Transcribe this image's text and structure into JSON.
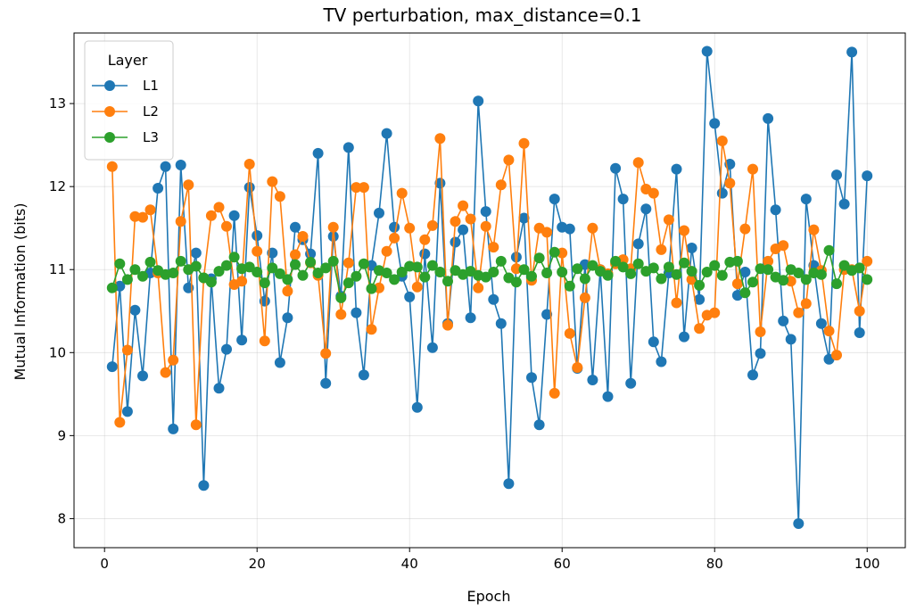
{
  "chart_data": {
    "type": "line",
    "title": "TV perturbation, max_distance=0.1",
    "xlabel": "Epoch",
    "ylabel": "Mutual Information (bits)",
    "xlim": [
      -4,
      105
    ],
    "ylim": [
      7.65,
      13.85
    ],
    "xticks": [
      0,
      20,
      40,
      60,
      80,
      100
    ],
    "yticks": [
      8,
      9,
      10,
      11,
      12,
      13
    ],
    "grid": true,
    "legend": {
      "title": "Layer",
      "placement": "top-left"
    },
    "x": [
      1,
      2,
      3,
      4,
      5,
      6,
      7,
      8,
      9,
      10,
      11,
      12,
      13,
      14,
      15,
      16,
      17,
      18,
      19,
      20,
      21,
      22,
      23,
      24,
      25,
      26,
      27,
      28,
      29,
      30,
      31,
      32,
      33,
      34,
      35,
      36,
      37,
      38,
      39,
      40,
      41,
      42,
      43,
      44,
      45,
      46,
      47,
      48,
      49,
      50,
      51,
      52,
      53,
      54,
      55,
      56,
      57,
      58,
      59,
      60,
      61,
      62,
      63,
      64,
      65,
      66,
      67,
      68,
      69,
      70,
      71,
      72,
      73,
      74,
      75,
      76,
      77,
      78,
      79,
      80,
      81,
      82,
      83,
      84,
      85,
      86,
      87,
      88,
      89,
      90,
      91,
      92,
      93,
      94,
      95,
      96,
      97,
      98,
      99,
      100
    ],
    "series": [
      {
        "name": "L1",
        "color": "#1f77b4",
        "values": [
          9.83,
          10.8,
          9.29,
          10.51,
          9.72,
          10.96,
          11.98,
          12.24,
          9.08,
          12.26,
          10.78,
          11.2,
          8.4,
          10.89,
          9.57,
          10.04,
          11.65,
          10.15,
          11.99,
          11.41,
          10.62,
          11.2,
          9.88,
          10.42,
          11.51,
          11.36,
          11.19,
          12.4,
          9.63,
          11.4,
          10.68,
          12.47,
          10.48,
          9.73,
          11.05,
          11.68,
          12.64,
          11.51,
          10.92,
          10.67,
          9.34,
          11.19,
          10.06,
          12.04,
          10.35,
          11.33,
          11.48,
          10.42,
          13.03,
          11.7,
          10.64,
          10.35,
          8.42,
          11.15,
          11.62,
          9.7,
          9.13,
          10.46,
          11.85,
          11.51,
          11.49,
          9.81,
          11.06,
          9.67,
          11.0,
          9.47,
          12.22,
          11.85,
          9.63,
          11.31,
          11.73,
          10.13,
          9.89,
          10.96,
          12.21,
          10.19,
          11.26,
          10.64,
          13.63,
          12.76,
          11.92,
          12.27,
          10.69,
          10.97,
          9.73,
          9.99,
          12.82,
          11.72,
          10.38,
          10.16,
          7.94,
          11.85,
          11.05,
          10.35,
          9.92,
          12.14,
          11.79,
          13.62,
          10.24,
          12.13
        ]
      },
      {
        "name": "L2",
        "color": "#ff7f0e",
        "values": [
          12.24,
          9.16,
          10.03,
          11.64,
          11.63,
          11.72,
          10.96,
          9.76,
          9.91,
          11.58,
          12.02,
          9.13,
          10.9,
          11.65,
          11.75,
          11.52,
          10.82,
          10.86,
          12.27,
          11.22,
          10.14,
          12.06,
          11.88,
          10.74,
          11.18,
          11.4,
          11.08,
          10.93,
          9.99,
          11.51,
          10.46,
          11.08,
          11.99,
          11.99,
          10.28,
          10.78,
          11.22,
          11.38,
          11.92,
          11.5,
          10.79,
          11.36,
          11.53,
          12.58,
          10.33,
          11.58,
          11.77,
          11.61,
          10.78,
          11.52,
          11.27,
          12.02,
          12.32,
          11.01,
          12.52,
          10.87,
          11.5,
          11.45,
          9.51,
          11.2,
          10.23,
          9.82,
          10.66,
          11.5,
          11.0,
          10.95,
          11.07,
          11.12,
          11.01,
          12.29,
          11.97,
          11.92,
          11.24,
          11.6,
          10.6,
          11.47,
          10.88,
          10.29,
          10.45,
          10.48,
          12.55,
          12.04,
          10.83,
          11.49,
          12.21,
          10.25,
          11.1,
          11.25,
          11.29,
          10.86,
          10.48,
          10.59,
          11.48,
          10.99,
          10.26,
          9.97,
          11.0,
          11.0,
          10.5,
          11.1
        ]
      },
      {
        "name": "L3",
        "color": "#2ca02c",
        "values": [
          10.78,
          11.07,
          10.88,
          11.0,
          10.92,
          11.09,
          10.99,
          10.94,
          10.96,
          11.1,
          11.0,
          11.04,
          10.9,
          10.85,
          10.98,
          11.05,
          11.15,
          11.01,
          11.03,
          10.97,
          10.84,
          11.02,
          10.95,
          10.88,
          11.06,
          10.93,
          11.09,
          10.96,
          11.02,
          11.1,
          10.66,
          10.84,
          10.92,
          11.07,
          10.77,
          10.99,
          10.96,
          10.88,
          10.97,
          11.04,
          11.03,
          10.91,
          11.05,
          10.97,
          10.86,
          10.99,
          10.94,
          10.98,
          10.93,
          10.91,
          10.97,
          11.1,
          10.9,
          10.85,
          11.0,
          10.92,
          11.14,
          10.96,
          11.21,
          10.97,
          10.8,
          11.01,
          10.89,
          11.05,
          10.98,
          10.93,
          11.1,
          11.03,
          10.95,
          11.07,
          10.98,
          11.02,
          10.89,
          11.03,
          10.94,
          11.08,
          10.98,
          10.81,
          10.97,
          11.05,
          10.93,
          11.09,
          11.1,
          10.72,
          10.85,
          11.01,
          11.0,
          10.91,
          10.87,
          11.0,
          10.96,
          10.88,
          10.96,
          10.94,
          11.23,
          10.83,
          11.05,
          10.99,
          11.02,
          10.88
        ]
      }
    ]
  }
}
